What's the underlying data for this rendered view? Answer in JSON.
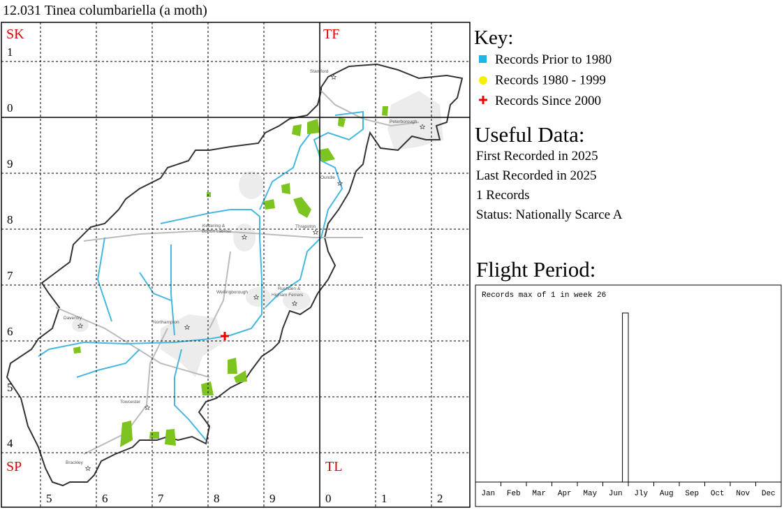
{
  "title": "12.031 Tinea columbariella (a moth)",
  "map": {
    "squares": [
      "SK",
      "TF",
      "SP",
      "TL"
    ],
    "row_labels": [
      "1",
      "0",
      "9",
      "8",
      "7",
      "6",
      "5",
      "4"
    ],
    "column_labels": [
      "5",
      "6",
      "7",
      "8",
      "9",
      "0",
      "1",
      "2"
    ],
    "towns": [
      "Stamford",
      "Peterborough",
      "Oundle",
      "Kettering &",
      "Burton Latimer",
      "Thrapston",
      "Wellingborough",
      "Rushden &",
      "Higham Ferrers",
      "Daventry",
      "Northampton",
      "Towcester",
      "Brackley"
    ]
  },
  "key": {
    "title": "Key:",
    "items": [
      "Records Prior to 1980",
      "Records 1980 - 1999",
      "Records Since 2000"
    ]
  },
  "useful_data": {
    "title": "Useful Data:",
    "lines": [
      "First Recorded in 2025",
      "Last Recorded in 2025",
      "1 Records",
      "Status: Nationally Scarce A"
    ]
  },
  "flight_period": {
    "title": "Flight Period:",
    "caption": "Records max of 1 in week 26",
    "months": [
      "Jan",
      "Feb",
      "Mar",
      "Apr",
      "May",
      "Jun",
      "Jly",
      "Aug",
      "Sep",
      "Oct",
      "Nov",
      "Dec"
    ],
    "bars": [
      {
        "week": 26,
        "records": 1
      }
    ]
  }
}
